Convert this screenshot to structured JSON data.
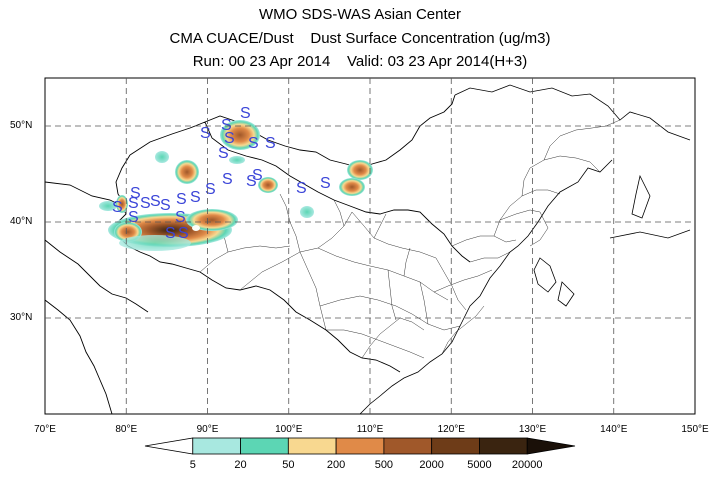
{
  "titles": {
    "line1": "WMO SDS-WAS Asian Center",
    "line2": "CMA CUACE/Dust    Dust Surface Concentration (ug/m3)",
    "line3": "Run: 00 23 Apr 2014    Valid: 03 23 Apr 2014(H+3)"
  },
  "map": {
    "lon_range": [
      70,
      150
    ],
    "lat_range": [
      20,
      55
    ],
    "lon_ticks": [
      "70°E",
      "80°E",
      "90°E",
      "100°E",
      "110°E",
      "120°E",
      "130°E",
      "140°E",
      "150°E"
    ],
    "lat_ticks": [
      "30°N",
      "40°N",
      "50°N"
    ],
    "grid": "dashed",
    "observation_marker": "S"
  },
  "colorbar": {
    "labels": [
      "5",
      "20",
      "50",
      "200",
      "500",
      "2000",
      "5000",
      "20000"
    ],
    "colors": [
      "#ffffff",
      "#a8e8e0",
      "#5cd6b4",
      "#f8d890",
      "#e08a48",
      "#a0582a",
      "#6e3c18",
      "#3a2410",
      "#1a1008"
    ]
  }
}
